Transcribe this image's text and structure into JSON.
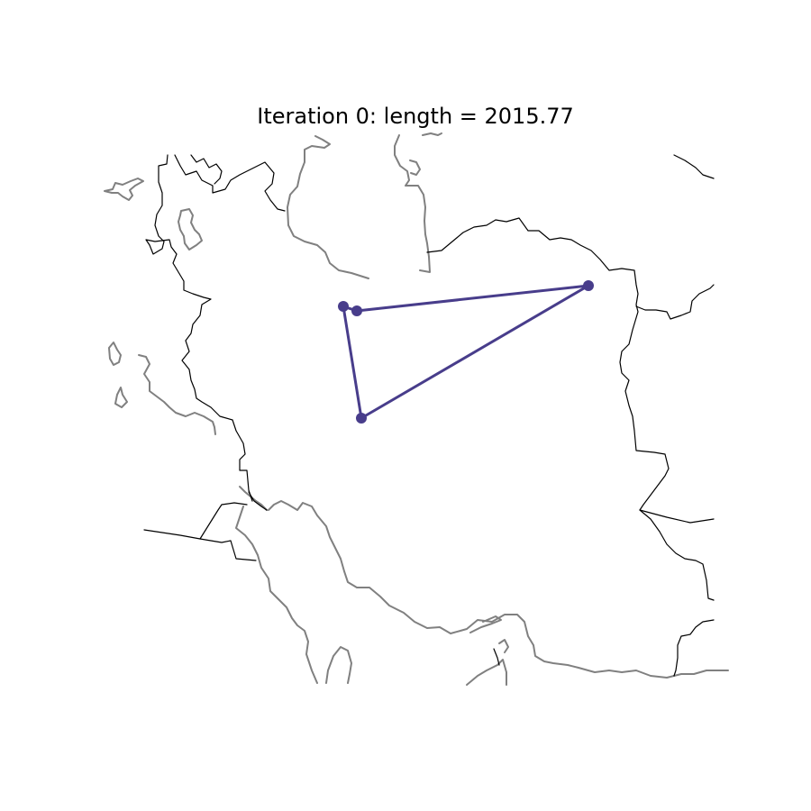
{
  "figure": {
    "title": "Iteration 0: length = 2015.77"
  },
  "route": {
    "iteration": 0,
    "length": 2015.77,
    "color": "#483d8b",
    "stops": [
      {
        "id": "city-1"
      },
      {
        "id": "city-2"
      },
      {
        "id": "city-3"
      },
      {
        "id": "city-4"
      }
    ]
  },
  "map": {
    "coastline_color": "#808080",
    "border_color": "#000000"
  }
}
